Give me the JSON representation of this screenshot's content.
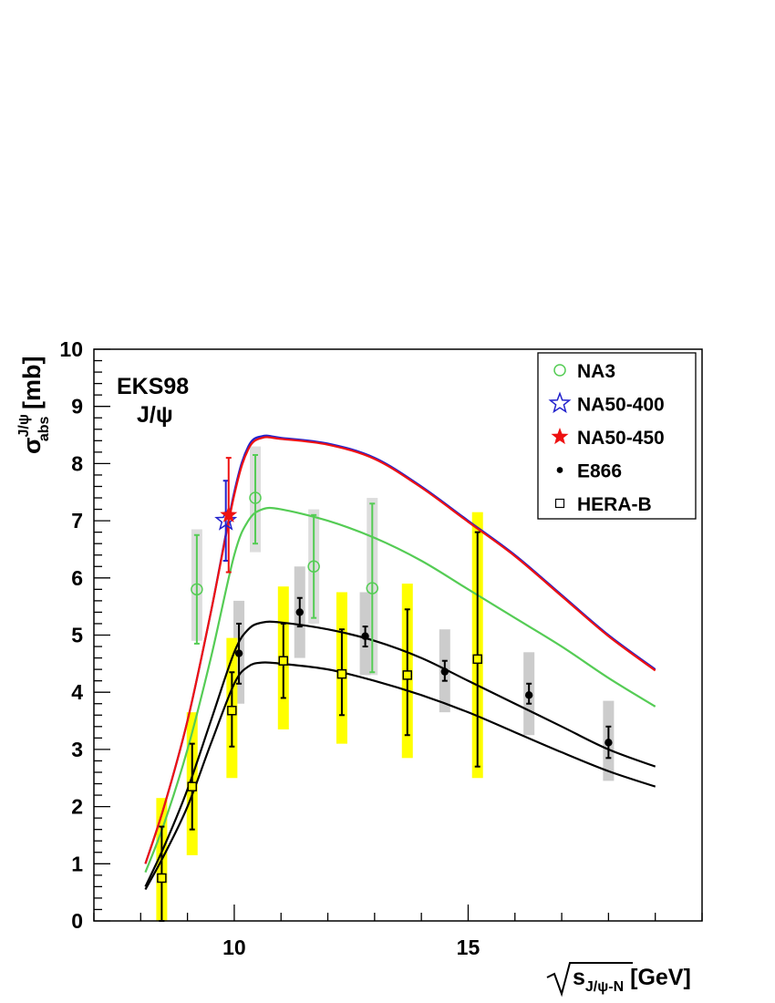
{
  "chart_data": {
    "type": "scatter",
    "annotation": {
      "line1": "EKS98",
      "line2": "J/ψ"
    },
    "xlabel": {
      "prefix": "s",
      "subscript": "J/ψ-N",
      "unit": " [GeV]"
    },
    "ylabel": {
      "symbol": "σ",
      "superscript": "J/ψ",
      "subscript": "abs",
      "unit": " [mb]"
    },
    "xlim": [
      7,
      20
    ],
    "ylim": [
      0,
      10
    ],
    "xticks": [
      10,
      15
    ],
    "xtick_labels": [
      "10",
      "15"
    ],
    "yticks": [
      0,
      1,
      2,
      3,
      4,
      5,
      6,
      7,
      8,
      9,
      10
    ],
    "ytick_labels": [
      "0",
      "1",
      "2",
      "3",
      "4",
      "5",
      "6",
      "7",
      "8",
      "9",
      "10"
    ],
    "legend": [
      {
        "label": "NA3",
        "marker": "open-circle",
        "color": "#55cc55"
      },
      {
        "label": "NA50-400",
        "marker": "open-star",
        "color": "#2222cc"
      },
      {
        "label": "NA50-450",
        "marker": "filled-star",
        "color": "#ee1111"
      },
      {
        "label": "E866",
        "marker": "filled-circle",
        "color": "#000000"
      },
      {
        "label": "HERA-B",
        "marker": "open-square",
        "color": "#000000"
      }
    ],
    "curves": [
      {
        "name": "NA50-400 curve",
        "color": "#2222cc",
        "x": [
          8.1,
          8.5,
          9.0,
          9.5,
          10.0,
          10.3,
          10.6,
          11.0,
          12.0,
          13.0,
          14.0,
          15.0,
          16.0,
          17.0,
          18.0,
          19.0
        ],
        "y": [
          1.0,
          2.0,
          3.5,
          5.4,
          7.5,
          8.3,
          8.48,
          8.45,
          8.35,
          8.1,
          7.6,
          7.0,
          6.4,
          5.7,
          5.0,
          4.4
        ]
      },
      {
        "name": "NA50-450 curve",
        "color": "#ee1111",
        "x": [
          8.1,
          8.5,
          9.0,
          9.5,
          10.0,
          10.3,
          10.6,
          11.0,
          12.0,
          13.0,
          14.0,
          15.0,
          16.0,
          17.0,
          18.0,
          19.0
        ],
        "y": [
          1.0,
          2.0,
          3.5,
          5.4,
          7.45,
          8.25,
          8.45,
          8.43,
          8.33,
          8.08,
          7.58,
          6.98,
          6.38,
          5.68,
          4.98,
          4.38
        ]
      },
      {
        "name": "NA3 curve",
        "color": "#55cc55",
        "x": [
          8.1,
          8.5,
          9.0,
          9.5,
          10.0,
          10.3,
          10.6,
          11.0,
          12.0,
          13.0,
          14.0,
          15.0,
          16.0,
          17.0,
          18.0,
          19.0
        ],
        "y": [
          0.85,
          1.7,
          3.0,
          4.6,
          6.4,
          7.0,
          7.2,
          7.2,
          7.0,
          6.7,
          6.3,
          5.8,
          5.3,
          4.8,
          4.25,
          3.75
        ]
      },
      {
        "name": "E866 curve",
        "color": "#000000",
        "x": [
          8.1,
          8.5,
          9.0,
          9.5,
          10.0,
          10.3,
          10.6,
          11.0,
          12.0,
          13.0,
          14.0,
          15.0,
          16.0,
          17.0,
          18.0,
          19.0
        ],
        "y": [
          0.6,
          1.3,
          2.3,
          3.5,
          4.7,
          5.1,
          5.22,
          5.22,
          5.1,
          4.9,
          4.6,
          4.2,
          3.8,
          3.4,
          3.0,
          2.7
        ]
      },
      {
        "name": "HERA-B curve",
        "color": "#000000",
        "x": [
          8.1,
          8.5,
          9.0,
          9.5,
          10.0,
          10.3,
          10.6,
          11.0,
          12.0,
          13.0,
          14.0,
          15.0,
          16.0,
          17.0,
          18.0,
          19.0
        ],
        "y": [
          0.55,
          1.15,
          2.0,
          3.1,
          4.15,
          4.45,
          4.52,
          4.5,
          4.4,
          4.2,
          3.95,
          3.65,
          3.3,
          2.95,
          2.62,
          2.35
        ]
      }
    ],
    "bands": [
      {
        "series": "NA3",
        "x": 9.2,
        "low": 4.9,
        "high": 6.85,
        "color": "#dddddd"
      },
      {
        "series": "NA3",
        "x": 10.45,
        "low": 6.45,
        "high": 8.3,
        "color": "#dddddd"
      },
      {
        "series": "NA3",
        "x": 11.7,
        "low": 5.2,
        "high": 7.2,
        "color": "#dddddd"
      },
      {
        "series": "NA3",
        "x": 12.95,
        "low": 4.3,
        "high": 7.4,
        "color": "#dddddd"
      },
      {
        "series": "E866",
        "x": 10.1,
        "low": 3.8,
        "high": 5.6,
        "color": "#cccccc"
      },
      {
        "series": "E866",
        "x": 11.4,
        "low": 4.6,
        "high": 6.2,
        "color": "#cccccc"
      },
      {
        "series": "E866",
        "x": 12.8,
        "low": 4.3,
        "high": 5.75,
        "color": "#cccccc"
      },
      {
        "series": "E866",
        "x": 14.5,
        "low": 3.65,
        "high": 5.1,
        "color": "#cccccc"
      },
      {
        "series": "E866",
        "x": 16.3,
        "low": 3.25,
        "high": 4.7,
        "color": "#cccccc"
      },
      {
        "series": "E866",
        "x": 18.0,
        "low": 2.45,
        "high": 3.85,
        "color": "#cccccc"
      },
      {
        "series": "HERA-B",
        "x": 8.45,
        "low": 0,
        "high": 2.15,
        "color": "#ffff00"
      },
      {
        "series": "HERA-B",
        "x": 9.1,
        "low": 1.15,
        "high": 3.65,
        "color": "#ffff00"
      },
      {
        "series": "HERA-B",
        "x": 9.95,
        "low": 2.5,
        "high": 4.95,
        "color": "#ffff00"
      },
      {
        "series": "HERA-B",
        "x": 11.05,
        "low": 3.35,
        "high": 5.85,
        "color": "#ffff00"
      },
      {
        "series": "HERA-B",
        "x": 12.3,
        "low": 3.1,
        "high": 5.75,
        "color": "#ffff00"
      },
      {
        "series": "HERA-B",
        "x": 13.7,
        "low": 2.85,
        "high": 5.9,
        "color": "#ffff00"
      },
      {
        "series": "HERA-B",
        "x": 15.2,
        "low": 2.5,
        "high": 7.15,
        "color": "#ffff00"
      }
    ],
    "series": [
      {
        "name": "NA3",
        "marker": "open-circle",
        "color": "#55cc55",
        "err_color": "#55cc55",
        "points": [
          {
            "x": 9.2,
            "y": 5.8,
            "lo": 4.85,
            "hi": 6.75
          },
          {
            "x": 10.45,
            "y": 7.4,
            "lo": 6.6,
            "hi": 8.15
          },
          {
            "x": 11.7,
            "y": 6.2,
            "lo": 5.3,
            "hi": 7.1
          },
          {
            "x": 12.95,
            "y": 5.82,
            "lo": 4.35,
            "hi": 7.3
          }
        ]
      },
      {
        "name": "E866",
        "marker": "filled-circle",
        "color": "#000000",
        "err_color": "#000000",
        "points": [
          {
            "x": 10.1,
            "y": 4.68,
            "lo": 4.15,
            "hi": 5.2
          },
          {
            "x": 11.4,
            "y": 5.4,
            "lo": 5.15,
            "hi": 5.65
          },
          {
            "x": 12.8,
            "y": 4.98,
            "lo": 4.8,
            "hi": 5.15
          },
          {
            "x": 14.5,
            "y": 4.36,
            "lo": 4.2,
            "hi": 4.55
          },
          {
            "x": 16.3,
            "y": 3.95,
            "lo": 3.8,
            "hi": 4.15
          },
          {
            "x": 18.0,
            "y": 3.12,
            "lo": 2.85,
            "hi": 3.4
          }
        ]
      },
      {
        "name": "HERA-B",
        "marker": "open-square",
        "color": "#000000",
        "err_color": "#000000",
        "points": [
          {
            "x": 8.45,
            "y": 0.75,
            "lo": 0.0,
            "hi": 1.65
          },
          {
            "x": 9.1,
            "y": 2.35,
            "lo": 1.6,
            "hi": 3.1
          },
          {
            "x": 9.95,
            "y": 3.68,
            "lo": 3.05,
            "hi": 4.35
          },
          {
            "x": 11.05,
            "y": 4.55,
            "lo": 3.9,
            "hi": 5.2
          },
          {
            "x": 12.3,
            "y": 4.32,
            "lo": 3.6,
            "hi": 5.1
          },
          {
            "x": 13.7,
            "y": 4.3,
            "lo": 3.25,
            "hi": 5.45
          },
          {
            "x": 15.2,
            "y": 4.58,
            "lo": 2.7,
            "hi": 6.8
          }
        ]
      },
      {
        "name": "NA50-400",
        "marker": "open-star",
        "color": "#2222cc",
        "err_color": "#2222cc",
        "points": [
          {
            "x": 9.82,
            "y": 7.0,
            "lo": 6.3,
            "hi": 7.7
          }
        ]
      },
      {
        "name": "NA50-450",
        "marker": "filled-star",
        "color": "#ee1111",
        "err_color": "#ee1111",
        "points": [
          {
            "x": 9.88,
            "y": 7.1,
            "lo": 6.1,
            "hi": 8.1
          }
        ]
      }
    ]
  }
}
